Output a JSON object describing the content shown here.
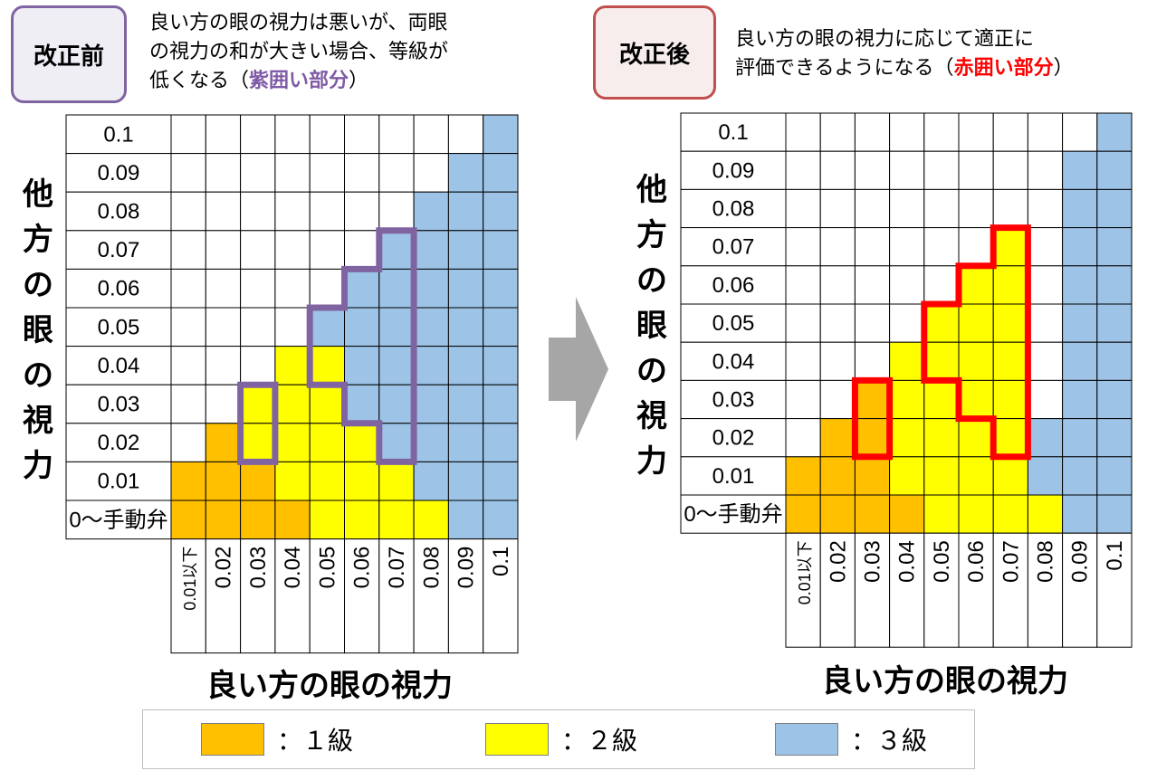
{
  "before": {
    "label": "改正前",
    "desc_line1": "良い方の眼の視力は悪いが、両眼",
    "desc_line2": "の視力の和が大きい場合、等級が",
    "desc_line3_pre": "低くなる（",
    "desc_line3_emph": "紫囲い部分",
    "desc_line3_post": "）"
  },
  "after": {
    "label": "改正後",
    "desc_line1": "良い方の眼の視力に応じて適正に",
    "desc_line2_pre": "評価できるようになる（",
    "desc_line2_emph": "赤囲い部分",
    "desc_line2_post": "）"
  },
  "axis": {
    "y_title": "他方の眼の視力",
    "x_title": "良い方の眼の視力",
    "y_rows": [
      "0.1",
      "0.09",
      "0.08",
      "0.07",
      "0.06",
      "0.05",
      "0.04",
      "0.03",
      "0.02",
      "0.01",
      "0〜手動弁"
    ],
    "x_cols": [
      "0.01以下",
      "0.02",
      "0.03",
      "0.04",
      "0.05",
      "0.06",
      "0.07",
      "0.08",
      "0.09",
      "0.1"
    ]
  },
  "colors": {
    "grade1": "#ffc000",
    "grade2": "#ffff00",
    "grade3": "#9dc3e6",
    "none": "#ffffff",
    "purple_outline": "#8064a2",
    "red_outline": "#ff0000"
  },
  "grid_before": [
    [
      0,
      0,
      0,
      0,
      0,
      0,
      0,
      0,
      0,
      3
    ],
    [
      0,
      0,
      0,
      0,
      0,
      0,
      0,
      0,
      3,
      3
    ],
    [
      0,
      0,
      0,
      0,
      0,
      0,
      0,
      3,
      3,
      3
    ],
    [
      0,
      0,
      0,
      0,
      0,
      0,
      3,
      3,
      3,
      3
    ],
    [
      0,
      0,
      0,
      0,
      0,
      3,
      3,
      3,
      3,
      3
    ],
    [
      0,
      0,
      0,
      0,
      3,
      3,
      3,
      3,
      3,
      3
    ],
    [
      0,
      0,
      0,
      2,
      2,
      3,
      3,
      3,
      3,
      3
    ],
    [
      0,
      0,
      2,
      2,
      2,
      3,
      3,
      3,
      3,
      3
    ],
    [
      0,
      1,
      2,
      2,
      2,
      2,
      3,
      3,
      3,
      3
    ],
    [
      1,
      1,
      1,
      2,
      2,
      2,
      2,
      3,
      3,
      3
    ],
    [
      1,
      1,
      1,
      1,
      2,
      2,
      2,
      2,
      3,
      3
    ]
  ],
  "grid_after": [
    [
      0,
      0,
      0,
      0,
      0,
      0,
      0,
      0,
      0,
      3
    ],
    [
      0,
      0,
      0,
      0,
      0,
      0,
      0,
      0,
      3,
      3
    ],
    [
      0,
      0,
      0,
      0,
      0,
      0,
      0,
      0,
      3,
      3
    ],
    [
      0,
      0,
      0,
      0,
      0,
      0,
      2,
      0,
      3,
      3
    ],
    [
      0,
      0,
      0,
      0,
      0,
      2,
      2,
      0,
      3,
      3
    ],
    [
      0,
      0,
      0,
      0,
      2,
      2,
      2,
      0,
      3,
      3
    ],
    [
      0,
      0,
      0,
      2,
      2,
      2,
      2,
      0,
      3,
      3
    ],
    [
      0,
      0,
      1,
      2,
      2,
      2,
      2,
      0,
      3,
      3
    ],
    [
      0,
      1,
      1,
      2,
      2,
      2,
      2,
      3,
      3,
      3
    ],
    [
      1,
      1,
      1,
      2,
      2,
      2,
      2,
      3,
      3,
      3
    ],
    [
      1,
      1,
      1,
      1,
      2,
      2,
      2,
      2,
      3,
      3
    ]
  ],
  "legend": [
    {
      "label": "：１級",
      "color_key": "grade1"
    },
    {
      "label": "：２級",
      "color_key": "grade2"
    },
    {
      "label": "：３級",
      "color_key": "grade3"
    }
  ]
}
